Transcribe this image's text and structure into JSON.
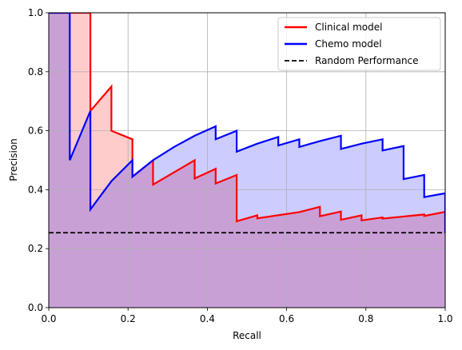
{
  "chart_data": {
    "type": "line",
    "title": "",
    "xlabel": "Recall",
    "ylabel": "Precision",
    "xlim": [
      0,
      1
    ],
    "ylim": [
      0,
      1
    ],
    "xticks": [
      "0.0",
      "0.2",
      "0.4",
      "0.6",
      "0.8",
      "1.0"
    ],
    "yticks": [
      "0.0",
      "0.2",
      "0.4",
      "0.6",
      "0.8",
      "1.0"
    ],
    "grid": true,
    "legend_position": "top-right",
    "series": [
      {
        "name": "Clinical model",
        "color": "#ff0000",
        "fill_color": "#ffcccc",
        "points": [
          [
            0.0,
            1.0
          ],
          [
            0.105,
            1.0
          ],
          [
            0.105,
            0.667
          ],
          [
            0.158,
            0.75
          ],
          [
            0.158,
            0.6
          ],
          [
            0.211,
            0.571
          ],
          [
            0.211,
            0.444
          ],
          [
            0.263,
            0.5
          ],
          [
            0.263,
            0.417
          ],
          [
            0.368,
            0.5
          ],
          [
            0.368,
            0.438
          ],
          [
            0.421,
            0.471
          ],
          [
            0.421,
            0.421
          ],
          [
            0.474,
            0.45
          ],
          [
            0.474,
            0.293
          ],
          [
            0.526,
            0.313
          ],
          [
            0.526,
            0.303
          ],
          [
            0.632,
            0.324
          ],
          [
            0.684,
            0.342
          ],
          [
            0.684,
            0.31
          ],
          [
            0.737,
            0.326
          ],
          [
            0.737,
            0.298
          ],
          [
            0.789,
            0.313
          ],
          [
            0.789,
            0.296
          ],
          [
            0.842,
            0.306
          ],
          [
            0.842,
            0.302
          ],
          [
            0.947,
            0.316
          ],
          [
            0.947,
            0.311
          ],
          [
            1.0,
            0.325
          ],
          [
            1.0,
            0.254
          ]
        ]
      },
      {
        "name": "Chemo model",
        "color": "#0000ff",
        "fill_color": "#ccccff",
        "points": [
          [
            0.0,
            1.0
          ],
          [
            0.053,
            1.0
          ],
          [
            0.053,
            0.5
          ],
          [
            0.105,
            0.667
          ],
          [
            0.105,
            0.333
          ],
          [
            0.158,
            0.429
          ],
          [
            0.211,
            0.5
          ],
          [
            0.211,
            0.444
          ],
          [
            0.263,
            0.5
          ],
          [
            0.316,
            0.545
          ],
          [
            0.368,
            0.583
          ],
          [
            0.421,
            0.615
          ],
          [
            0.421,
            0.571
          ],
          [
            0.474,
            0.6
          ],
          [
            0.474,
            0.529
          ],
          [
            0.526,
            0.556
          ],
          [
            0.579,
            0.579
          ],
          [
            0.579,
            0.55
          ],
          [
            0.632,
            0.571
          ],
          [
            0.632,
            0.545
          ],
          [
            0.684,
            0.565
          ],
          [
            0.737,
            0.583
          ],
          [
            0.737,
            0.538
          ],
          [
            0.789,
            0.556
          ],
          [
            0.842,
            0.571
          ],
          [
            0.842,
            0.533
          ],
          [
            0.895,
            0.548
          ],
          [
            0.895,
            0.436
          ],
          [
            0.947,
            0.45
          ],
          [
            0.947,
            0.375
          ],
          [
            1.0,
            0.388
          ],
          [
            1.0,
            0.254
          ]
        ]
      }
    ],
    "baseline": {
      "name": "Random Performance",
      "value": 0.254,
      "color": "#000000",
      "style": "dashed"
    },
    "overlap_color": "#c8a0d6"
  }
}
